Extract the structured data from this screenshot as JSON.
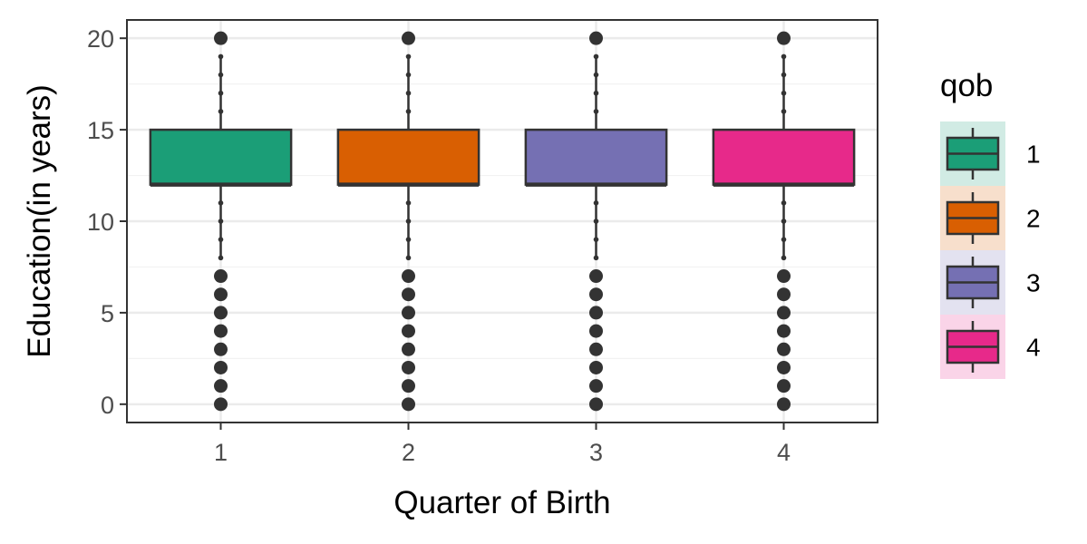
{
  "chart_data": {
    "type": "boxplot",
    "xlabel": "Quarter of Birth",
    "ylabel": "Education(in years)",
    "categories": [
      "1",
      "2",
      "3",
      "4"
    ],
    "ylim": [
      -1,
      21
    ],
    "yticks": [
      "0",
      "5",
      "10",
      "15",
      "20"
    ],
    "grid": true,
    "legend": {
      "title": "qob",
      "position": "right",
      "items": [
        "1",
        "2",
        "3",
        "4"
      ]
    },
    "colors": [
      "#1b9e77",
      "#d95f02",
      "#7570b3",
      "#e7298a"
    ],
    "legend_key_backgrounds": [
      "#d1ebe4",
      "#f7dfcc",
      "#e3e2f0",
      "#fad4e8"
    ],
    "boxes": [
      {
        "category": "1",
        "q1": 12,
        "median": 12,
        "q3": 15,
        "whisker_low": 8,
        "whisker_high": 19,
        "outliers": [
          0,
          1,
          2,
          3,
          4,
          5,
          6,
          7,
          20
        ]
      },
      {
        "category": "2",
        "q1": 12,
        "median": 12,
        "q3": 15,
        "whisker_low": 8,
        "whisker_high": 19,
        "outliers": [
          0,
          1,
          2,
          3,
          4,
          5,
          6,
          7,
          20
        ]
      },
      {
        "category": "3",
        "q1": 12,
        "median": 12,
        "q3": 15,
        "whisker_low": 8,
        "whisker_high": 19,
        "outliers": [
          0,
          1,
          2,
          3,
          4,
          5,
          6,
          7,
          20
        ]
      },
      {
        "category": "4",
        "q1": 12,
        "median": 12,
        "q3": 15,
        "whisker_low": 8,
        "whisker_high": 19,
        "outliers": [
          0,
          1,
          2,
          3,
          4,
          5,
          6,
          7,
          20
        ]
      }
    ],
    "whisker_points": [
      8,
      9,
      10,
      11,
      16,
      17,
      18,
      19
    ]
  }
}
